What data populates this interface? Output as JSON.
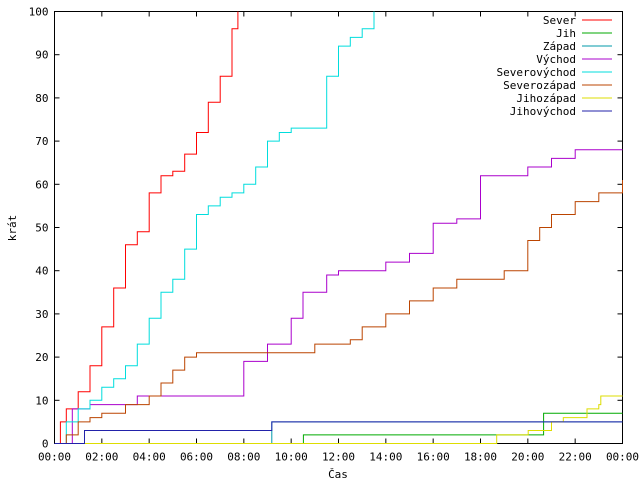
{
  "chart_data": {
    "type": "line",
    "title": "",
    "xlabel": "Čas",
    "ylabel": "krát",
    "xlim": [
      "00:00",
      "24:00"
    ],
    "ylim": [
      0,
      100
    ],
    "x_ticks": [
      "00:00",
      "02:00",
      "04:00",
      "06:00",
      "08:00",
      "10:00",
      "12:00",
      "14:00",
      "16:00",
      "18:00",
      "20:00",
      "22:00",
      "00:00"
    ],
    "y_ticks": [
      0,
      10,
      20,
      30,
      40,
      50,
      60,
      70,
      80,
      90,
      100
    ],
    "grid": false,
    "legend_position": "top-right",
    "series": [
      {
        "name": "Sever",
        "color": "#ff0000",
        "x": [
          "00:00",
          "00:15",
          "00:30",
          "01:00",
          "01:30",
          "02:00",
          "02:30",
          "03:00",
          "03:30",
          "04:00",
          "04:30",
          "05:00",
          "05:30",
          "06:00",
          "06:30",
          "07:00",
          "07:30",
          "07:45"
        ],
        "y": [
          0,
          5,
          8,
          12,
          18,
          27,
          36,
          46,
          49,
          58,
          62,
          63,
          67,
          72,
          79,
          85,
          96,
          100
        ]
      },
      {
        "name": "Jih",
        "color": "#00aa00",
        "x": [
          "00:00",
          "10:30",
          "10:31",
          "20:30",
          "20:40",
          "24:00"
        ],
        "y": [
          0,
          0,
          2,
          2,
          7,
          7
        ]
      },
      {
        "name": "Západ",
        "color": "#0099aa",
        "x": [
          "00:00",
          "09:10",
          "09:11",
          "24:00"
        ],
        "y": [
          0,
          0,
          5,
          5
        ]
      },
      {
        "name": "Východ",
        "color": "#aa00cc",
        "x": [
          "00:00",
          "00:45",
          "01:30",
          "03:30",
          "07:00",
          "08:00",
          "09:00",
          "10:00",
          "10:30",
          "11:30",
          "12:00",
          "13:00",
          "14:00",
          "15:00",
          "16:00",
          "17:00",
          "18:00",
          "19:00",
          "20:00",
          "21:00",
          "22:00",
          "24:00"
        ],
        "y": [
          0,
          8,
          9,
          11,
          11,
          19,
          23,
          29,
          35,
          39,
          40,
          40,
          42,
          44,
          51,
          52,
          62,
          62,
          64,
          66,
          68,
          68
        ]
      },
      {
        "name": "Severovýchod",
        "color": "#00dddd",
        "x": [
          "00:00",
          "00:30",
          "01:00",
          "01:30",
          "02:00",
          "02:30",
          "03:00",
          "03:30",
          "04:00",
          "04:30",
          "05:00",
          "05:30",
          "06:00",
          "06:30",
          "07:00",
          "07:30",
          "08:00",
          "08:30",
          "09:00",
          "09:30",
          "10:00",
          "10:30",
          "11:00",
          "11:30",
          "12:00",
          "12:30",
          "13:00",
          "13:30"
        ],
        "y": [
          0,
          5,
          8,
          10,
          13,
          15,
          18,
          23,
          29,
          35,
          38,
          45,
          53,
          55,
          57,
          58,
          60,
          64,
          70,
          72,
          73,
          73,
          73,
          85,
          92,
          94,
          96,
          100
        ]
      },
      {
        "name": "Severozápad",
        "color": "#bb4400",
        "x": [
          "00:00",
          "00:30",
          "01:00",
          "01:30",
          "02:00",
          "03:00",
          "04:00",
          "04:30",
          "05:00",
          "05:30",
          "06:00",
          "07:00",
          "08:00",
          "09:00",
          "10:00",
          "11:00",
          "12:00",
          "12:30",
          "13:00",
          "14:00",
          "15:00",
          "16:00",
          "17:00",
          "18:00",
          "19:00",
          "20:00",
          "20:30",
          "21:00",
          "22:00",
          "23:00",
          "24:00"
        ],
        "y": [
          0,
          2,
          5,
          6,
          7,
          9,
          11,
          14,
          17,
          20,
          21,
          21,
          21,
          21,
          21,
          23,
          23,
          24,
          27,
          30,
          33,
          36,
          38,
          38,
          40,
          47,
          50,
          53,
          56,
          58,
          61
        ]
      },
      {
        "name": "Jihozápad",
        "color": "#dddd00",
        "x": [
          "00:00",
          "18:40",
          "18:41",
          "20:00",
          "20:01",
          "21:00",
          "21:30",
          "22:00",
          "22:30",
          "23:00",
          "23:05",
          "24:00"
        ],
        "y": [
          0,
          0,
          2,
          2,
          3,
          5,
          6,
          6,
          8,
          9,
          11,
          11
        ]
      },
      {
        "name": "Jihovýchod",
        "color": "#2222aa",
        "x": [
          "00:00",
          "01:15",
          "01:16",
          "09:10",
          "09:11",
          "24:00"
        ],
        "y": [
          0,
          0,
          3,
          3,
          5,
          5
        ]
      }
    ]
  }
}
